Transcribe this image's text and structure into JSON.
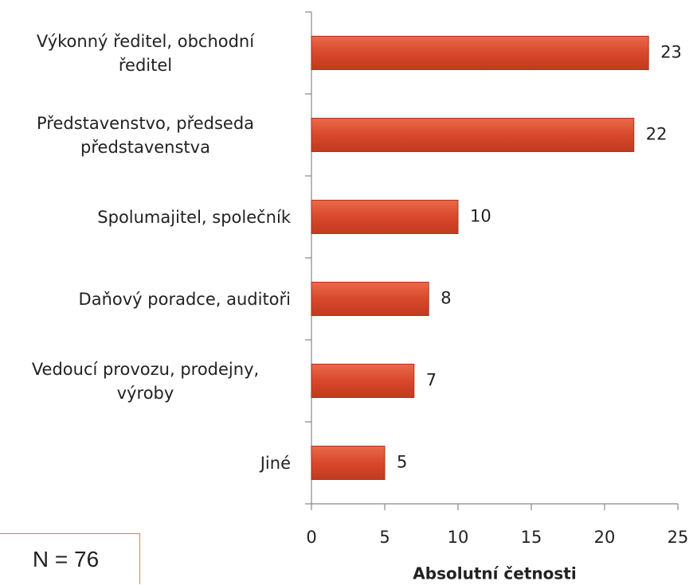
{
  "chart_data": {
    "type": "bar",
    "orientation": "horizontal",
    "categories": [
      "Výkonný ředitel, obchodní\nředitel",
      "Představenstvo, předseda\npředstavenstva",
      "Spolumajitel, společník",
      "Daňový poradce, auditoři",
      "Vedoucí provozu, prodejny,\nvýroby",
      "Jiné"
    ],
    "values": [
      23,
      22,
      10,
      8,
      7,
      5
    ],
    "color": "#d8482c",
    "xlim": [
      0,
      25
    ],
    "xticks": [
      0,
      5,
      10,
      15,
      20,
      25
    ],
    "xlabel": "Absolutní četnosti",
    "annotation": "N = 76"
  }
}
